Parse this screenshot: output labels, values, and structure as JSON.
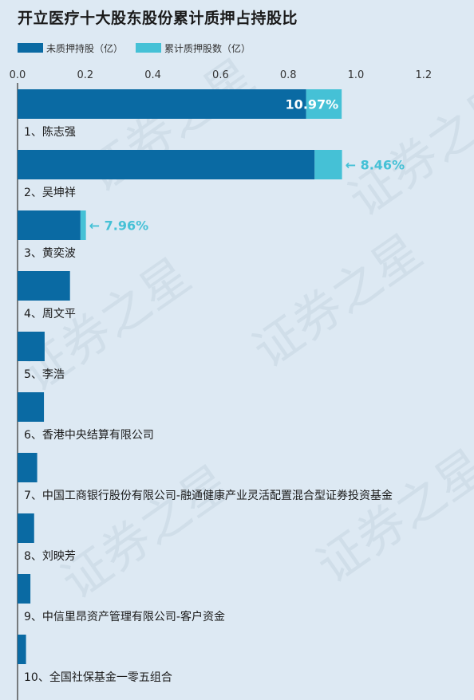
{
  "title": "开立医疗十大股东股份累计质押占持股比",
  "legend": [
    {
      "label": "未质押持股（亿）",
      "color": "#0a6aa3"
    },
    {
      "label": "累计质押股数（亿）",
      "color": "#45c1d6"
    }
  ],
  "watermark": "证券之星",
  "chart_data": {
    "type": "bar",
    "orientation": "horizontal",
    "stacked": true,
    "title": "开立医疗十大股东股份累计质押占持股比",
    "xlim": [
      0,
      1.3
    ],
    "xticks": [
      "0.0",
      "0.2",
      "0.4",
      "0.6",
      "0.8",
      "1.0",
      "1.2"
    ],
    "tick_values": [
      0,
      0.2,
      0.4,
      0.6,
      0.8,
      1.0,
      1.2
    ],
    "categories": [
      "1、陈志强",
      "2、吴坤祥",
      "3、黄奕波",
      "4、周文平",
      "5、李浩",
      "6、香港中央结算有限公司",
      "7、中国工商银行股份有限公司-融通健康产业灵活配置混合型证券投资基金",
      "8、刘映芳",
      "9、中信里昂资产管理有限公司-客户资金",
      "10、全国社保基金一零五组合"
    ],
    "series": [
      {
        "name": "未质押持股（亿）",
        "color": "#0a6aa3",
        "values": [
          0.853,
          0.878,
          0.186,
          0.155,
          0.08,
          0.078,
          0.058,
          0.049,
          0.038,
          0.025
        ]
      },
      {
        "name": "累计质押股数（亿）",
        "color": "#45c1d6",
        "values": [
          0.105,
          0.081,
          0.016,
          0,
          0,
          0,
          0,
          0,
          0,
          0
        ]
      }
    ],
    "annotations": [
      {
        "index": 0,
        "text": "10.97%",
        "style": "inside"
      },
      {
        "index": 1,
        "text": "8.46%",
        "style": "arrow"
      },
      {
        "index": 2,
        "text": "7.96%",
        "style": "arrow"
      }
    ]
  }
}
